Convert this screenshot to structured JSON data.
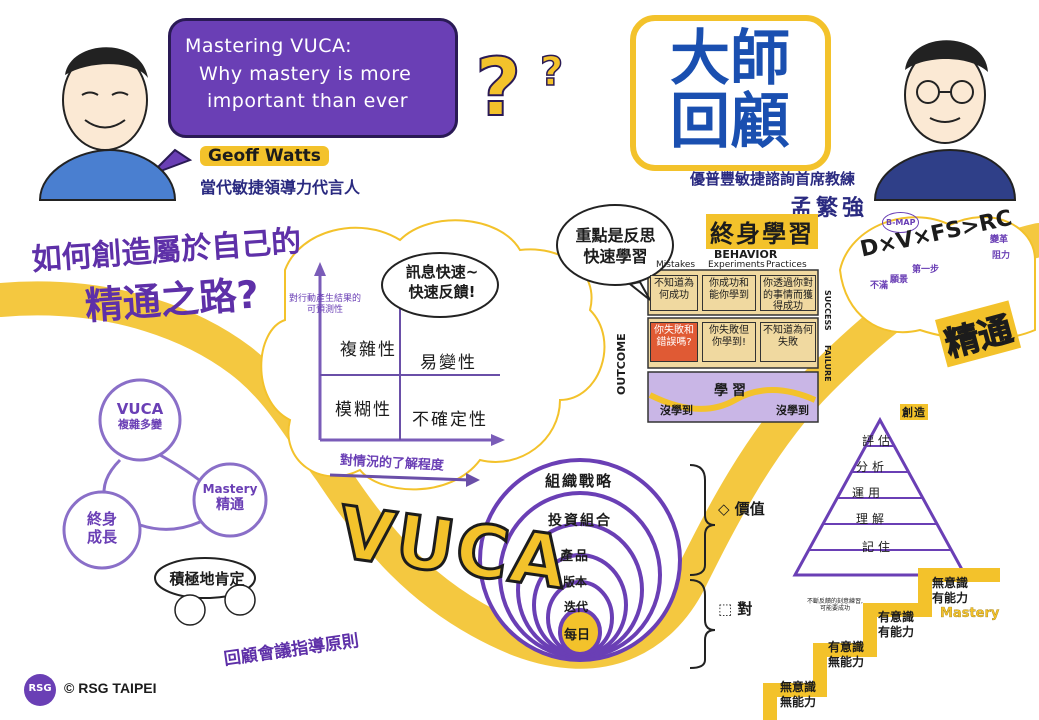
{
  "speaker_left": {
    "talk_title": [
      "Mastering VUCA:",
      "Why mastery is more",
      "important than ever"
    ],
    "name": "Geoff Watts",
    "title": "當代敏捷領導力代言人"
  },
  "speaker_right": {
    "badge": [
      "大師",
      "回顧"
    ],
    "title": "優普豐敏捷諮詢首席教練",
    "name": "孟繁強"
  },
  "headline": [
    "如何創造屬於自己的",
    "精通之路?"
  ],
  "vuca_matrix": {
    "y_axis": [
      "對行動產生結果的",
      "可預測性"
    ],
    "x_axis": "對情況的了解程度",
    "cells": [
      "複雜性",
      "易變性",
      "模糊性",
      "不確定性"
    ],
    "bubble": [
      "訊息快速~",
      "快速反饋!"
    ]
  },
  "cycle": {
    "nodes": [
      "VUCA",
      "複雜多變",
      "終身",
      "成長",
      "Mastery",
      "精通"
    ],
    "bubble": "積極地肯定",
    "caption": "回顧會議指導原則"
  },
  "vuca_word": "VUCA",
  "rings": [
    "組織戰略",
    "投資組合",
    "產品",
    "版本",
    "迭代",
    "每日"
  ],
  "brackets": [
    "價值",
    "對"
  ],
  "lifelong": {
    "title": "終身學習",
    "bubble": [
      "重點是反思",
      "快速學習"
    ],
    "behavior": "BEHAVIOR",
    "cols": [
      "Mistakes",
      "Experiments",
      "Practices"
    ],
    "outcome": "OUTCOME",
    "success": "SUCCESS",
    "failure": "FAILURE",
    "cards_top": [
      "不知道為何成功",
      "你成功和能你學到",
      "你透過你對的事情而獲得成功"
    ],
    "cards_mid": [
      "你失敗和錯誤嗎?",
      "你失敗但你學到!",
      "不知道為何失敗"
    ],
    "learn_row": [
      "沒學到",
      "學習",
      "沒學到"
    ]
  },
  "formula": {
    "text": "D×V×FS>RC",
    "badge": "B-MAP",
    "notes": [
      "不滿",
      "願景",
      "第一步",
      "變革",
      "阻力"
    ]
  },
  "mastery_word": "精通",
  "pyramid": {
    "top": "創造",
    "levels": [
      "評估",
      "分析",
      "運用",
      "理解",
      "記住"
    ]
  },
  "stairs": {
    "label": "Mastery",
    "note": [
      "不斷反饋的刻意練習,",
      "可能要成功"
    ],
    "steps": [
      [
        "無意識",
        "無能力"
      ],
      [
        "有意識",
        "無能力"
      ],
      [
        "有意識",
        "有能力"
      ],
      [
        "無意識",
        "有能力"
      ]
    ]
  },
  "footer": {
    "logo": "RSG",
    "copyright": "© RSG TAIPEI"
  },
  "colors": {
    "yellow": "#f3c22b",
    "purple": "#6a3fb5",
    "blue": "#1a4fb0",
    "ink": "#1c1c1c"
  }
}
